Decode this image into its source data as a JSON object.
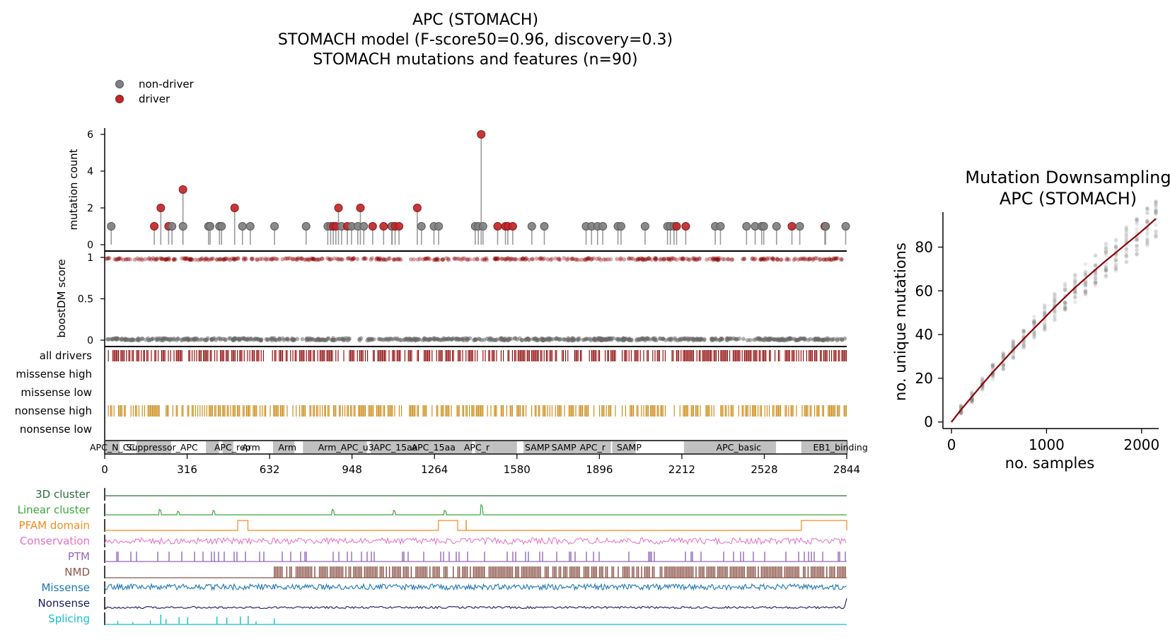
{
  "main_title": [
    "APC (STOMACH)",
    "STOMACH model (F-score50=0.96, discovery=0.3)",
    "STOMACH mutations and features (n=90)"
  ],
  "legend": [
    {
      "label": "non-driver",
      "color": "#808080"
    },
    {
      "label": "driver",
      "color": "#c0282a"
    }
  ],
  "protein_length": 2844,
  "x_ticks": [
    0,
    316,
    632,
    948,
    1264,
    1580,
    1896,
    2212,
    2528,
    2844
  ],
  "chart_data": [
    {
      "type": "scatter",
      "name": "mutation lollipop",
      "ylabel": "mutation count",
      "yticks": [
        0,
        2,
        4,
        6
      ],
      "ylim": [
        0,
        6
      ],
      "points": [
        {
          "pos": 25,
          "count": 1,
          "driver": false
        },
        {
          "pos": 190,
          "count": 1,
          "driver": true
        },
        {
          "pos": 215,
          "count": 2,
          "driver": true
        },
        {
          "pos": 245,
          "count": 1,
          "driver": true
        },
        {
          "pos": 258,
          "count": 1,
          "driver": false
        },
        {
          "pos": 300,
          "count": 3,
          "driver": true
        },
        {
          "pos": 300,
          "count": 1,
          "driver": false
        },
        {
          "pos": 398,
          "count": 1,
          "driver": false
        },
        {
          "pos": 404,
          "count": 1,
          "driver": false
        },
        {
          "pos": 440,
          "count": 1,
          "driver": false
        },
        {
          "pos": 448,
          "count": 1,
          "driver": false
        },
        {
          "pos": 498,
          "count": 2,
          "driver": true
        },
        {
          "pos": 528,
          "count": 1,
          "driver": false
        },
        {
          "pos": 558,
          "count": 1,
          "driver": false
        },
        {
          "pos": 651,
          "count": 1,
          "driver": false
        },
        {
          "pos": 772,
          "count": 1,
          "driver": false
        },
        {
          "pos": 855,
          "count": 1,
          "driver": false
        },
        {
          "pos": 866,
          "count": 1,
          "driver": false
        },
        {
          "pos": 876,
          "count": 1,
          "driver": true
        },
        {
          "pos": 886,
          "count": 1,
          "driver": true
        },
        {
          "pos": 896,
          "count": 2,
          "driver": true
        },
        {
          "pos": 908,
          "count": 1,
          "driver": false
        },
        {
          "pos": 930,
          "count": 1,
          "driver": true
        },
        {
          "pos": 946,
          "count": 1,
          "driver": false
        },
        {
          "pos": 970,
          "count": 1,
          "driver": false
        },
        {
          "pos": 980,
          "count": 2,
          "driver": true
        },
        {
          "pos": 993,
          "count": 1,
          "driver": false
        },
        {
          "pos": 1027,
          "count": 1,
          "driver": true
        },
        {
          "pos": 1069,
          "count": 1,
          "driver": true
        },
        {
          "pos": 1100,
          "count": 1,
          "driver": true
        },
        {
          "pos": 1102,
          "count": 1,
          "driver": false
        },
        {
          "pos": 1113,
          "count": 1,
          "driver": true
        },
        {
          "pos": 1128,
          "count": 1,
          "driver": true
        },
        {
          "pos": 1198,
          "count": 2,
          "driver": true
        },
        {
          "pos": 1214,
          "count": 1,
          "driver": false
        },
        {
          "pos": 1262,
          "count": 1,
          "driver": false
        },
        {
          "pos": 1280,
          "count": 1,
          "driver": false
        },
        {
          "pos": 1420,
          "count": 1,
          "driver": false
        },
        {
          "pos": 1432,
          "count": 1,
          "driver": false
        },
        {
          "pos": 1443,
          "count": 6,
          "driver": true
        },
        {
          "pos": 1450,
          "count": 1,
          "driver": false
        },
        {
          "pos": 1506,
          "count": 1,
          "driver": true
        },
        {
          "pos": 1536,
          "count": 1,
          "driver": true
        },
        {
          "pos": 1545,
          "count": 1,
          "driver": true
        },
        {
          "pos": 1564,
          "count": 1,
          "driver": true
        },
        {
          "pos": 1637,
          "count": 1,
          "driver": false
        },
        {
          "pos": 1685,
          "count": 1,
          "driver": false
        },
        {
          "pos": 1845,
          "count": 1,
          "driver": false
        },
        {
          "pos": 1866,
          "count": 1,
          "driver": false
        },
        {
          "pos": 1889,
          "count": 1,
          "driver": false
        },
        {
          "pos": 1909,
          "count": 1,
          "driver": false
        },
        {
          "pos": 1967,
          "count": 1,
          "driver": false
        },
        {
          "pos": 1979,
          "count": 1,
          "driver": false
        },
        {
          "pos": 2071,
          "count": 1,
          "driver": false
        },
        {
          "pos": 2157,
          "count": 1,
          "driver": false
        },
        {
          "pos": 2168,
          "count": 1,
          "driver": false
        },
        {
          "pos": 2182,
          "count": 1,
          "driver": false
        },
        {
          "pos": 2192,
          "count": 1,
          "driver": true
        },
        {
          "pos": 2227,
          "count": 1,
          "driver": true
        },
        {
          "pos": 2340,
          "count": 1,
          "driver": false
        },
        {
          "pos": 2360,
          "count": 1,
          "driver": false
        },
        {
          "pos": 2460,
          "count": 1,
          "driver": false
        },
        {
          "pos": 2493,
          "count": 1,
          "driver": false
        },
        {
          "pos": 2518,
          "count": 1,
          "driver": false
        },
        {
          "pos": 2526,
          "count": 1,
          "driver": false
        },
        {
          "pos": 2575,
          "count": 1,
          "driver": false
        },
        {
          "pos": 2634,
          "count": 1,
          "driver": true
        },
        {
          "pos": 2664,
          "count": 1,
          "driver": false
        },
        {
          "pos": 2760,
          "count": 1,
          "driver": true
        },
        {
          "pos": 2763,
          "count": 1,
          "driver": false
        },
        {
          "pos": 2840,
          "count": 1,
          "driver": false
        }
      ]
    },
    {
      "type": "scatter",
      "name": "boostDM score",
      "ylabel": "boostDM score",
      "yticks": [
        0,
        0.5,
        1
      ],
      "ylim": [
        0,
        1
      ],
      "driver_score": 0.98,
      "passenger_score": 0.01
    },
    {
      "type": "heatmap",
      "name": "driver tracks",
      "rows": [
        "all drivers",
        "missense high",
        "missense low",
        "nonsense high",
        "nonsense low"
      ],
      "row_colors": [
        "#8b0000",
        "#c62828",
        "#e57373",
        "#c8860a",
        "#e8b64c"
      ],
      "row_density": [
        0.62,
        0,
        0,
        0.55,
        0
      ]
    },
    {
      "type": "bar",
      "name": "domains",
      "domains": [
        {
          "label": "APC_N_CC",
          "start": 2,
          "end": 57
        },
        {
          "label": "Suppressor_APC",
          "start": 122,
          "end": 255
        },
        {
          "label": "APC_rep",
          "start": 388,
          "end": 438
        },
        {
          "label": "Arm",
          "start": 452,
          "end": 493
        },
        {
          "label": "Arm",
          "start": 645,
          "end": 727
        },
        {
          "label": "Arm_APC_u3",
          "start": 760,
          "end": 1005
        },
        {
          "label": "APC_15aa",
          "start": 1019,
          "end": 1108
        },
        {
          "label": "APC_15aa",
          "start": 1108,
          "end": 1206
        },
        {
          "label": "APC_15aa",
          "start": 1206,
          "end": 1292
        },
        {
          "label": "SAMP",
          "start": 1292,
          "end": 1408
        },
        {
          "label": "APC_r",
          "start": 1420,
          "end": 1485
        },
        {
          "label": "APC_r",
          "start": 1485,
          "end": 1580
        },
        {
          "label": "SAMP",
          "start": 1605,
          "end": 1695
        },
        {
          "label": "SAMP",
          "start": 1695,
          "end": 1810
        },
        {
          "label": "APC_r",
          "start": 1810,
          "end": 1940
        },
        {
          "label": "SAMP",
          "start": 1945,
          "end": 2035
        },
        {
          "label": "APC_basic",
          "start": 2220,
          "end": 2573
        },
        {
          "label": "EB1_binding",
          "start": 2670,
          "end": 2844
        }
      ],
      "domain_labels": [
        {
          "text": "APC_N_CC",
          "at": 30
        },
        {
          "text": "Suppressor_APC",
          "at": 220
        },
        {
          "text": "APC_rep",
          "at": 490
        },
        {
          "text": "Arm",
          "at": 561
        },
        {
          "text": "Arm",
          "at": 700
        },
        {
          "text": "Arm_APC_u3",
          "at": 925
        },
        {
          "text": "APC_15aa",
          "at": 1115
        },
        {
          "text": "APC_15aa",
          "at": 1260
        },
        {
          "text": "APC_r",
          "at": 1426
        },
        {
          "text": "SAMP",
          "at": 1658
        },
        {
          "text": "SAMP",
          "at": 1760
        },
        {
          "text": "APC_r",
          "at": 1870
        },
        {
          "text": "SAMP",
          "at": 2010
        },
        {
          "text": "APC_basic",
          "at": 2430
        },
        {
          "text": "EB1_binding",
          "at": 2820
        }
      ]
    },
    {
      "type": "line",
      "name": "features",
      "rows": [
        {
          "label": "3D cluster",
          "color": "#2d6b3a"
        },
        {
          "label": "Linear cluster",
          "color": "#3aa63a"
        },
        {
          "label": "PFAM domain",
          "color": "#f28c1e"
        },
        {
          "label": "Conservation",
          "color": "#e36fc6"
        },
        {
          "label": "PTM",
          "color": "#9467bd"
        },
        {
          "label": "NMD",
          "color": "#8c564b"
        },
        {
          "label": "Missense",
          "color": "#1f77b4"
        },
        {
          "label": "Nonsense",
          "color": "#1a1a5e"
        },
        {
          "label": "Splicing",
          "color": "#17becf"
        }
      ],
      "linear_cluster_peaks": [
        {
          "pos": 212,
          "h": 0.55
        },
        {
          "pos": 282,
          "h": 0.35
        },
        {
          "pos": 418,
          "h": 0.45
        },
        {
          "pos": 875,
          "h": 0.55
        },
        {
          "pos": 1110,
          "h": 0.45
        },
        {
          "pos": 1305,
          "h": 0.45
        },
        {
          "pos": 1445,
          "h": 1.0
        }
      ],
      "pfam_intervals": [
        [
          510,
          549
        ],
        [
          1279,
          1353
        ],
        [
          1385,
          1386
        ],
        [
          2670,
          2844
        ]
      ],
      "nmd_start": 650,
      "splicing_spikes": [
        {
          "pos": 50,
          "h": 0.35
        },
        {
          "pos": 108,
          "h": 0.25
        },
        {
          "pos": 175,
          "h": 0.4
        },
        {
          "pos": 215,
          "h": 1.0
        },
        {
          "pos": 235,
          "h": 0.55
        },
        {
          "pos": 285,
          "h": 0.75
        },
        {
          "pos": 318,
          "h": 0.75
        },
        {
          "pos": 430,
          "h": 0.8
        },
        {
          "pos": 468,
          "h": 0.7
        },
        {
          "pos": 520,
          "h": 0.8
        },
        {
          "pos": 550,
          "h": 0.85
        },
        {
          "pos": 580,
          "h": 0.3
        },
        {
          "pos": 650,
          "h": 0.6
        }
      ]
    },
    {
      "type": "scatter",
      "name": "downsampling",
      "title": [
        "Mutation Downsampling",
        "APC (STOMACH)"
      ],
      "xlabel": "no. samples",
      "ylabel": "no. unique mutations",
      "xticks": [
        0,
        1000,
        2000
      ],
      "yticks": [
        0,
        20,
        40,
        60,
        80
      ],
      "xlim": [
        -90,
        2180
      ],
      "ylim": [
        -3,
        96
      ],
      "sample_points": [
        0,
        100,
        215,
        325,
        435,
        545,
        650,
        760,
        870,
        980,
        1085,
        1195,
        1300,
        1410,
        1515,
        1625,
        1730,
        1840,
        1950,
        2060,
        2150
      ],
      "fit_y": [
        0,
        5.6,
        11.6,
        17.3,
        22.8,
        28.0,
        33.0,
        38.0,
        42.9,
        47.7,
        52.5,
        57.1,
        61.5,
        65.7,
        69.7,
        73.8,
        77.5,
        81.5,
        85.4,
        89.5,
        93.0
      ]
    }
  ]
}
